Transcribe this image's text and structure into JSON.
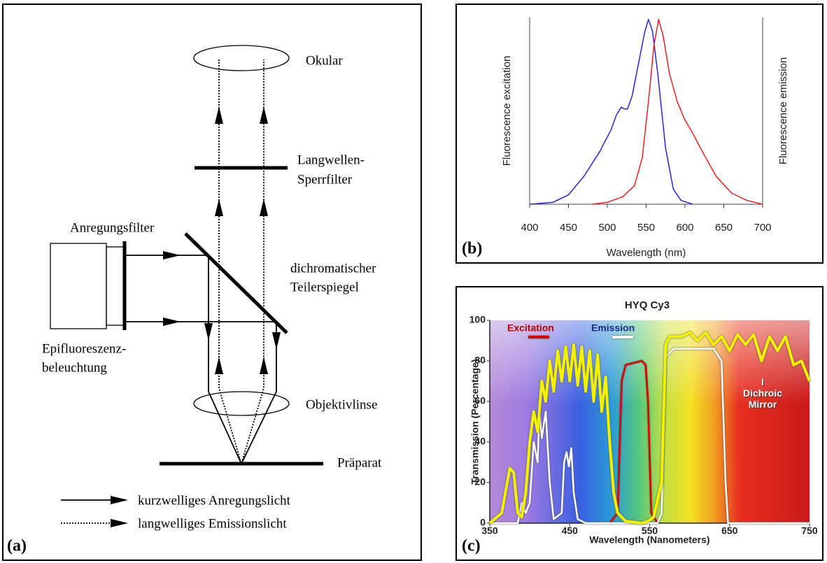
{
  "diagram": {
    "panel_label": "(a)",
    "eyepiece": "Okular",
    "barrier_filter": [
      "Langwellen-",
      "Sperrfilter"
    ],
    "excitation_filter": "Anregungsfilter",
    "dichroic_mirror": [
      "dichromatischer",
      "Teilerspiegel"
    ],
    "illumination": [
      "Epifluoreszenz-",
      "beleuchtung"
    ],
    "objective": "Objektivlinse",
    "specimen": "Präparat",
    "legend": [
      "kurzwelliges Anregungslicht",
      "langwelliges Emissionslicht"
    ]
  },
  "chart_data": [
    {
      "type": "line",
      "panel_label": "(b)",
      "xlabel": "Wavelength (nm)",
      "ylabel": "Fluorescence excitation",
      "y2label": "Fluorescence emission",
      "xlim": [
        400,
        700
      ],
      "xticks": [
        400,
        450,
        500,
        550,
        600,
        650,
        700
      ],
      "ylim": [
        0,
        100
      ],
      "series": [
        {
          "name": "Fluorescence excitation",
          "color": "#2424e0",
          "x": [
            400,
            430,
            450,
            470,
            490,
            505,
            512,
            518,
            522,
            526,
            532,
            540,
            548,
            553,
            558,
            565,
            575,
            585,
            595,
            610
          ],
          "values": [
            0,
            1,
            5,
            15,
            28,
            40,
            48,
            52,
            51,
            51,
            58,
            75,
            92,
            99,
            93,
            70,
            30,
            8,
            2,
            0
          ]
        },
        {
          "name": "Fluorescence emission",
          "color": "#e82020",
          "x": [
            480,
            500,
            520,
            535,
            545,
            553,
            560,
            566,
            572,
            580,
            590,
            600,
            610,
            620,
            640,
            660,
            680,
            700
          ],
          "values": [
            0,
            1,
            4,
            10,
            25,
            55,
            85,
            99,
            90,
            70,
            55,
            45,
            38,
            30,
            15,
            6,
            2,
            0
          ]
        }
      ]
    },
    {
      "type": "line",
      "title": "HYQ Cy3",
      "panel_label": "(c)",
      "xlabel": "Wavelength (Nanometers)",
      "ylabel": "Transmission (Percentage)",
      "xlim": [
        350,
        750
      ],
      "xticks": [
        350,
        450,
        550,
        650,
        750
      ],
      "ylim": [
        0,
        100
      ],
      "yticks": [
        0,
        20,
        40,
        60,
        80,
        100
      ],
      "series": [
        {
          "name": "Excitation",
          "color": "#dd0000",
          "x": [
            500,
            510,
            515,
            520,
            530,
            540,
            545,
            548,
            552,
            560
          ],
          "values": [
            0,
            5,
            70,
            78,
            79,
            80,
            78,
            60,
            5,
            0
          ]
        },
        {
          "name": "Emission",
          "color": "#ffffff",
          "x": [
            350,
            385,
            390,
            395,
            400,
            405,
            410,
            412,
            415,
            420,
            425,
            430,
            440,
            443,
            446,
            449,
            452,
            455,
            460,
            470,
            560,
            565,
            570,
            580,
            630,
            640,
            645,
            648,
            750
          ],
          "values": [
            0,
            0,
            10,
            5,
            10,
            40,
            30,
            55,
            42,
            55,
            20,
            2,
            5,
            30,
            35,
            28,
            37,
            15,
            2,
            0,
            0,
            5,
            82,
            86,
            86,
            80,
            20,
            0,
            0
          ]
        },
        {
          "name": "Dichroic Mirror",
          "color": "#f2f200",
          "x": [
            350,
            365,
            375,
            380,
            385,
            390,
            395,
            400,
            405,
            410,
            415,
            420,
            425,
            430,
            435,
            440,
            445,
            450,
            455,
            460,
            465,
            470,
            475,
            480,
            485,
            490,
            495,
            500,
            505,
            510,
            520,
            540,
            548,
            555,
            565,
            570,
            575,
            590,
            600,
            610,
            620,
            630,
            640,
            650,
            660,
            670,
            680,
            690,
            700,
            710,
            720,
            730,
            740,
            750
          ],
          "values": [
            0,
            5,
            27,
            25,
            5,
            3,
            15,
            40,
            55,
            45,
            70,
            60,
            80,
            65,
            85,
            70,
            87,
            70,
            88,
            68,
            87,
            65,
            85,
            60,
            83,
            55,
            72,
            40,
            15,
            5,
            1,
            0,
            1,
            3,
            20,
            88,
            92,
            92,
            94,
            90,
            94,
            88,
            92,
            85,
            93,
            88,
            93,
            80,
            92,
            85,
            92,
            78,
            80,
            70
          ]
        }
      ]
    }
  ]
}
